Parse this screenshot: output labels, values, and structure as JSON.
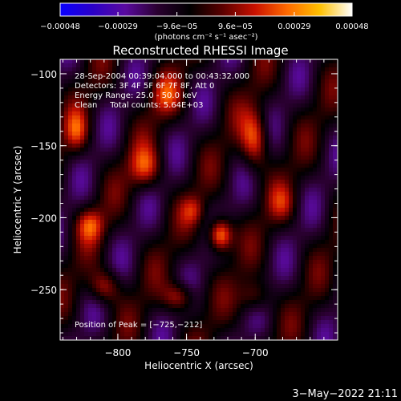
{
  "chart_data": {
    "type": "heatmap",
    "title": "Reconstructed RHESSI Image",
    "xlabel": "Heliocentric X (arcsec)",
    "ylabel": "Heliocentric Y (arcsec)",
    "xlim": [
      -842,
      -640
    ],
    "ylim": [
      -285,
      -90
    ],
    "x_ticks": [
      -800,
      -750,
      -700
    ],
    "x_tick_labels": [
      "−800",
      "−750",
      "−700"
    ],
    "y_ticks": [
      -100,
      -150,
      -200,
      -250
    ],
    "y_tick_labels": [
      "−100",
      "−150",
      "−200",
      "−250"
    ],
    "colorbar": {
      "min": -0.00048,
      "max": 0.00048,
      "ticks": [
        -0.00048,
        -0.00029,
        -9.6e-05,
        9.6e-05,
        0.00029,
        0.00048
      ],
      "tick_labels": [
        "−0.00048",
        "−0.00029",
        "−9.6e−05",
        "9.6e−05",
        "0.00029",
        "0.00048"
      ],
      "unit_label": "(photons cm⁻² s⁻¹ asec⁻²)",
      "colormap": [
        "#0a00ff",
        "#2a00c8",
        "#5a0aa0",
        "#2a0030",
        "#000000",
        "#5a0000",
        "#c81000",
        "#ff6a00",
        "#ffc000",
        "#ffffff"
      ]
    },
    "annotations": [
      "28-Sep-2004 00:39:04.000 to 00:43:32.000",
      "Detectors: 3F 4F 5F 6F 7F 8F, Att 0",
      "Energy Range: 25.0 - 50.0 keV",
      "Clean     Total counts: 5.64E+03"
    ],
    "peak_label": "Position of Peak = [−725,−212]",
    "peak": [
      -725,
      -212
    ],
    "sources": [
      {
        "x": -725,
        "y": -212,
        "peak": 0.00048,
        "sigma_x": 6,
        "sigma_y": 8
      },
      {
        "x": -700,
        "y": -145,
        "peak": 0.00033,
        "sigma_x": 7,
        "sigma_y": 14
      },
      {
        "x": -780,
        "y": -165,
        "peak": 0.00028,
        "sigma_x": 8,
        "sigma_y": 10
      },
      {
        "x": -820,
        "y": -205,
        "peak": 0.00026,
        "sigma_x": 7,
        "sigma_y": 8
      },
      {
        "x": -810,
        "y": -248,
        "peak": 0.00025,
        "sigma_x": 8,
        "sigma_y": 8
      },
      {
        "x": -755,
        "y": -255,
        "peak": 0.00026,
        "sigma_x": 8,
        "sigma_y": 7
      },
      {
        "x": -765,
        "y": -115,
        "peak": 0.0002,
        "sigma_x": 8,
        "sigma_y": 10
      },
      {
        "x": -830,
        "y": -140,
        "peak": 0.00024,
        "sigma_x": 6,
        "sigma_y": 10
      },
      {
        "x": -700,
        "y": -255,
        "peak": 0.0002,
        "sigma_x": 8,
        "sigma_y": 8
      },
      {
        "x": -680,
        "y": -190,
        "peak": 0.00016,
        "sigma_x": 7,
        "sigma_y": 9
      },
      {
        "x": -745,
        "y": -195,
        "peak": 0.00018,
        "sigma_x": 6,
        "sigma_y": 7
      }
    ]
  },
  "footer": {
    "date_label": "3−May−2022 21:11"
  }
}
